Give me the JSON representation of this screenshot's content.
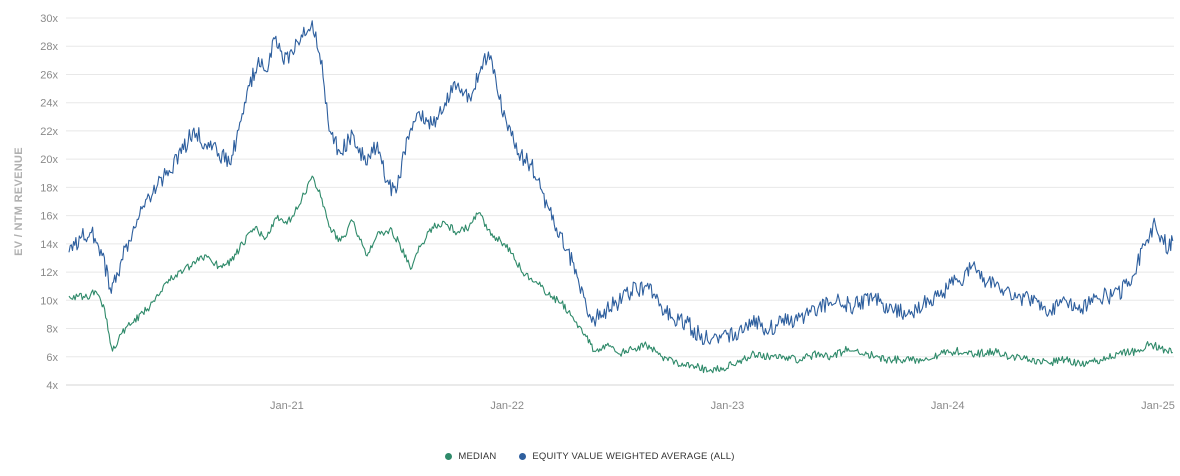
{
  "chart_data": {
    "type": "line",
    "ylabel": "EV / NTM REVENUE",
    "xlabel": "",
    "ylim": [
      4,
      30
    ],
    "y_ticks": [
      "4x",
      "6x",
      "8x",
      "10x",
      "12x",
      "14x",
      "16x",
      "18x",
      "20x",
      "22x",
      "24x",
      "26x",
      "28x",
      "30x"
    ],
    "x_range": [
      "2020-01-01",
      "2025-01-10"
    ],
    "x_ticks": [
      {
        "date": "2021-01-01",
        "label": "Jan-21"
      },
      {
        "date": "2022-01-01",
        "label": "Jan-22"
      },
      {
        "date": "2023-01-01",
        "label": "Jan-23"
      },
      {
        "date": "2024-01-01",
        "label": "Jan-24"
      },
      {
        "date": "2025-01-01",
        "label": "Jan-25"
      }
    ],
    "grid": "horizontal",
    "legend_position": "bottom-center",
    "series": [
      {
        "name": "MEDIAN",
        "color": "#2f8a6a",
        "points": [
          [
            "2020-01-06",
            10.3
          ],
          [
            "2020-02-01",
            10.2
          ],
          [
            "2020-02-20",
            10.6
          ],
          [
            "2020-03-05",
            9.4
          ],
          [
            "2020-03-18",
            6.4
          ],
          [
            "2020-04-01",
            7.6
          ],
          [
            "2020-04-20",
            8.4
          ],
          [
            "2020-05-15",
            9.4
          ],
          [
            "2020-06-10",
            11.0
          ],
          [
            "2020-07-01",
            11.8
          ],
          [
            "2020-07-25",
            12.4
          ],
          [
            "2020-08-20",
            13.2
          ],
          [
            "2020-09-10",
            12.4
          ],
          [
            "2020-10-01",
            12.8
          ],
          [
            "2020-10-20",
            14.0
          ],
          [
            "2020-11-10",
            15.2
          ],
          [
            "2020-11-25",
            14.3
          ],
          [
            "2020-12-15",
            15.8
          ],
          [
            "2021-01-01",
            15.4
          ],
          [
            "2021-01-20",
            16.6
          ],
          [
            "2021-02-12",
            18.8
          ],
          [
            "2021-02-28",
            17.2
          ],
          [
            "2021-03-12",
            15.2
          ],
          [
            "2021-03-31",
            14.2
          ],
          [
            "2021-04-20",
            15.6
          ],
          [
            "2021-05-12",
            13.2
          ],
          [
            "2021-05-30",
            14.6
          ],
          [
            "2021-06-20",
            15.0
          ],
          [
            "2021-07-05",
            14.2
          ],
          [
            "2021-07-25",
            12.2
          ],
          [
            "2021-08-10",
            13.8
          ],
          [
            "2021-08-30",
            15.2
          ],
          [
            "2021-09-20",
            15.5
          ],
          [
            "2021-10-10",
            14.8
          ],
          [
            "2021-10-30",
            15.2
          ],
          [
            "2021-11-15",
            16.2
          ],
          [
            "2021-12-05",
            14.6
          ],
          [
            "2021-12-28",
            14.0
          ],
          [
            "2022-01-15",
            12.8
          ],
          [
            "2022-01-31",
            11.8
          ],
          [
            "2022-02-20",
            11.2
          ],
          [
            "2022-03-10",
            10.4
          ],
          [
            "2022-04-01",
            9.8
          ],
          [
            "2022-04-20",
            8.8
          ],
          [
            "2022-05-10",
            7.6
          ],
          [
            "2022-05-25",
            6.4
          ],
          [
            "2022-06-15",
            6.8
          ],
          [
            "2022-07-05",
            6.2
          ],
          [
            "2022-08-01",
            6.6
          ],
          [
            "2022-08-20",
            6.8
          ],
          [
            "2022-09-15",
            6.0
          ],
          [
            "2022-10-10",
            5.6
          ],
          [
            "2022-11-05",
            5.4
          ],
          [
            "2022-11-30",
            5.0
          ],
          [
            "2022-12-25",
            5.2
          ],
          [
            "2023-01-20",
            5.6
          ],
          [
            "2023-02-10",
            6.2
          ],
          [
            "2023-03-10",
            6.0
          ],
          [
            "2023-04-05",
            6.0
          ],
          [
            "2023-05-01",
            5.8
          ],
          [
            "2023-05-30",
            6.2
          ],
          [
            "2023-06-25",
            6.0
          ],
          [
            "2023-07-20",
            6.6
          ],
          [
            "2023-08-20",
            6.2
          ],
          [
            "2023-09-20",
            5.8
          ],
          [
            "2023-10-20",
            5.8
          ],
          [
            "2023-11-20",
            5.8
          ],
          [
            "2023-12-20",
            6.2
          ],
          [
            "2024-01-15",
            6.4
          ],
          [
            "2024-02-15",
            6.2
          ],
          [
            "2024-03-15",
            6.4
          ],
          [
            "2024-04-15",
            6.0
          ],
          [
            "2024-05-15",
            5.8
          ],
          [
            "2024-06-15",
            5.6
          ],
          [
            "2024-07-15",
            5.8
          ],
          [
            "2024-08-10",
            5.4
          ],
          [
            "2024-09-10",
            5.8
          ],
          [
            "2024-10-10",
            6.2
          ],
          [
            "2024-11-10",
            6.4
          ],
          [
            "2024-12-01",
            6.9
          ],
          [
            "2024-12-20",
            6.6
          ],
          [
            "2025-01-08",
            6.3
          ]
        ]
      },
      {
        "name": "EQUITY VALUE WEIGHTED AVERAGE (ALL)",
        "color": "#2e5f9e",
        "points": [
          [
            "2020-01-06",
            13.4
          ],
          [
            "2020-01-25",
            14.4
          ],
          [
            "2020-02-12",
            14.8
          ],
          [
            "2020-02-28",
            13.6
          ],
          [
            "2020-03-16",
            10.5
          ],
          [
            "2020-03-31",
            12.6
          ],
          [
            "2020-04-20",
            14.8
          ],
          [
            "2020-05-10",
            16.6
          ],
          [
            "2020-06-01",
            18.2
          ],
          [
            "2020-06-20",
            19.2
          ],
          [
            "2020-07-10",
            20.4
          ],
          [
            "2020-07-31",
            22.2
          ],
          [
            "2020-08-20",
            21.0
          ],
          [
            "2020-09-10",
            20.4
          ],
          [
            "2020-09-30",
            19.6
          ],
          [
            "2020-10-15",
            22.6
          ],
          [
            "2020-10-31",
            25.2
          ],
          [
            "2020-11-15",
            27.2
          ],
          [
            "2020-11-30",
            26.2
          ],
          [
            "2020-12-10",
            28.6
          ],
          [
            "2020-12-25",
            27.0
          ],
          [
            "2021-01-10",
            27.6
          ],
          [
            "2021-01-25",
            28.8
          ],
          [
            "2021-02-12",
            29.8
          ],
          [
            "2021-02-28",
            27.0
          ],
          [
            "2021-03-12",
            22.0
          ],
          [
            "2021-03-31",
            20.4
          ],
          [
            "2021-04-20",
            21.8
          ],
          [
            "2021-05-12",
            19.6
          ],
          [
            "2021-05-31",
            21.2
          ],
          [
            "2021-06-15",
            18.4
          ],
          [
            "2021-07-01",
            17.6
          ],
          [
            "2021-07-20",
            21.6
          ],
          [
            "2021-08-10",
            23.0
          ],
          [
            "2021-08-31",
            22.4
          ],
          [
            "2021-09-20",
            24.0
          ],
          [
            "2021-10-10",
            25.2
          ],
          [
            "2021-10-31",
            24.4
          ],
          [
            "2021-11-15",
            26.0
          ],
          [
            "2021-12-01",
            27.6
          ],
          [
            "2021-12-15",
            25.0
          ],
          [
            "2021-12-31",
            22.6
          ],
          [
            "2022-01-20",
            20.4
          ],
          [
            "2022-02-10",
            19.6
          ],
          [
            "2022-03-01",
            17.6
          ],
          [
            "2022-03-20",
            15.4
          ],
          [
            "2022-04-10",
            13.6
          ],
          [
            "2022-04-25",
            12.2
          ],
          [
            "2022-05-12",
            9.6
          ],
          [
            "2022-05-25",
            8.6
          ],
          [
            "2022-06-15",
            9.4
          ],
          [
            "2022-07-01",
            9.8
          ],
          [
            "2022-07-25",
            10.6
          ],
          [
            "2022-08-20",
            11.0
          ],
          [
            "2022-09-10",
            9.6
          ],
          [
            "2022-10-01",
            8.8
          ],
          [
            "2022-10-25",
            8.4
          ],
          [
            "2022-11-15",
            7.6
          ],
          [
            "2022-12-05",
            7.2
          ],
          [
            "2022-12-31",
            7.6
          ],
          [
            "2023-01-20",
            7.8
          ],
          [
            "2023-02-10",
            8.6
          ],
          [
            "2023-03-05",
            8.0
          ],
          [
            "2023-04-01",
            8.4
          ],
          [
            "2023-05-01",
            8.8
          ],
          [
            "2023-05-31",
            9.4
          ],
          [
            "2023-07-01",
            10.0
          ],
          [
            "2023-07-31",
            9.6
          ],
          [
            "2023-08-31",
            10.2
          ],
          [
            "2023-10-01",
            9.4
          ],
          [
            "2023-10-31",
            9.0
          ],
          [
            "2023-11-30",
            10.0
          ],
          [
            "2023-12-31",
            10.8
          ],
          [
            "2024-01-20",
            11.4
          ],
          [
            "2024-02-10",
            12.4
          ],
          [
            "2024-03-01",
            11.6
          ],
          [
            "2024-03-31",
            10.8
          ],
          [
            "2024-05-01",
            10.2
          ],
          [
            "2024-05-31",
            10.0
          ],
          [
            "2024-06-20",
            9.2
          ],
          [
            "2024-07-15",
            10.0
          ],
          [
            "2024-08-10",
            9.4
          ],
          [
            "2024-09-01",
            10.2
          ],
          [
            "2024-10-01",
            10.4
          ],
          [
            "2024-10-25",
            11.0
          ],
          [
            "2024-11-10",
            12.6
          ],
          [
            "2024-11-25",
            14.2
          ],
          [
            "2024-12-10",
            15.4
          ],
          [
            "2024-12-22",
            14.4
          ],
          [
            "2025-01-01",
            13.6
          ],
          [
            "2025-01-08",
            14.2
          ]
        ]
      }
    ]
  }
}
